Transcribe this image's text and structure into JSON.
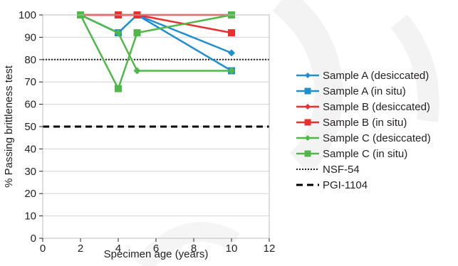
{
  "chart_data": {
    "type": "line",
    "xlabel": "Specimen age (years)",
    "ylabel": "% Passing brittleness test",
    "xlim": [
      0,
      12
    ],
    "ylim": [
      0,
      100
    ],
    "xticks": [
      0,
      2,
      4,
      6,
      8,
      10,
      12
    ],
    "yticks": [
      0,
      10,
      20,
      30,
      40,
      50,
      60,
      70,
      80,
      90,
      100
    ],
    "grid": "horizontal",
    "legend_position": "right",
    "series": [
      {
        "name": "Sample A (desiccated)",
        "color": "#1f8fd0",
        "marker": "diamond",
        "points": [
          [
            2,
            100
          ],
          [
            4,
            92
          ],
          [
            5,
            100
          ],
          [
            10,
            83
          ]
        ]
      },
      {
        "name": "Sample A (in situ)",
        "color": "#1f8fd0",
        "marker": "square",
        "points": [
          [
            2,
            100
          ],
          [
            4,
            92
          ],
          [
            5,
            100
          ],
          [
            10,
            75
          ]
        ]
      },
      {
        "name": "Sample B (desiccated)",
        "color": "#e8302e",
        "marker": "diamond",
        "points": [
          [
            2,
            100
          ],
          [
            4,
            100
          ],
          [
            5,
            100
          ],
          [
            10,
            100
          ]
        ]
      },
      {
        "name": "Sample B (in situ)",
        "color": "#e8302e",
        "marker": "square",
        "points": [
          [
            2,
            100
          ],
          [
            4,
            100
          ],
          [
            5,
            100
          ],
          [
            10,
            92
          ]
        ]
      },
      {
        "name": "Sample C (desiccated)",
        "color": "#4fb848",
        "marker": "diamond",
        "points": [
          [
            2,
            100
          ],
          [
            4,
            92
          ],
          [
            5,
            75
          ],
          [
            10,
            75
          ]
        ]
      },
      {
        "name": "Sample C (in situ)",
        "color": "#4fb848",
        "marker": "square",
        "points": [
          [
            2,
            100
          ],
          [
            4,
            67
          ],
          [
            5,
            92
          ],
          [
            10,
            100
          ]
        ]
      }
    ],
    "reference_lines": [
      {
        "name": "NSF-54",
        "value": 80,
        "style": "dotted",
        "color": "#231f20"
      },
      {
        "name": "PGI-1104",
        "value": 50,
        "style": "dashed",
        "color": "#000000"
      }
    ]
  }
}
